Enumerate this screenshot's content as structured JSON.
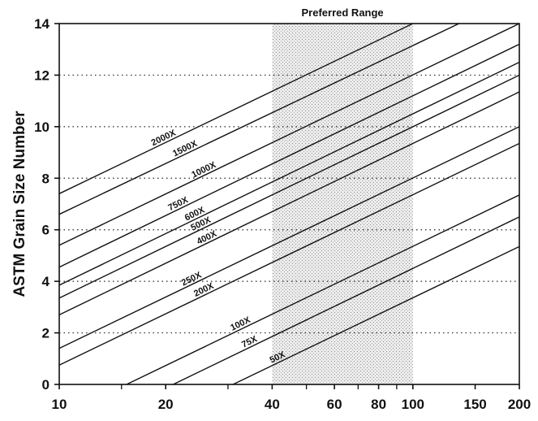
{
  "chart_data": {
    "type": "line",
    "title": "",
    "xlabel": "",
    "ylabel": "ASTM Grain Size Number",
    "x_scale": "log",
    "xlim": [
      10,
      200
    ],
    "ylim": [
      0,
      14
    ],
    "x_ticks": [
      10,
      20,
      40,
      60,
      80,
      100,
      150,
      200
    ],
    "x_tick_labels": [
      "10",
      "20",
      "40",
      "60",
      "80",
      "100",
      "150",
      "200"
    ],
    "x_minor_ticks": [
      15,
      30,
      50,
      70,
      90
    ],
    "y_ticks": [
      0,
      2,
      4,
      6,
      8,
      10,
      12,
      14
    ],
    "y_tick_labels": [
      "0",
      "2",
      "4",
      "6",
      "8",
      "10",
      "12",
      "14"
    ],
    "grid": {
      "y_major": "dotted",
      "x": false
    },
    "shaded_region": {
      "label": "Preferred Range",
      "x_from": 40,
      "x_to": 100
    },
    "series": [
      {
        "name": "2000X",
        "x": [
          10,
          100
        ],
        "y": [
          7.4,
          14.0
        ],
        "label_at": 20
      },
      {
        "name": "1500X",
        "x": [
          10,
          135
        ],
        "y": [
          6.6,
          14.0
        ],
        "label_at": 23
      },
      {
        "name": "1000X",
        "x": [
          10,
          200
        ],
        "y": [
          5.4,
          14.0
        ],
        "label_at": 26
      },
      {
        "name": "750X",
        "x": [
          10,
          200
        ],
        "y": [
          4.55,
          13.2
        ],
        "label_at": 22
      },
      {
        "name": "600X",
        "x": [
          10,
          200
        ],
        "y": [
          3.85,
          12.5
        ],
        "label_at": 24.5
      },
      {
        "name": "500X",
        "x": [
          10,
          200
        ],
        "y": [
          3.35,
          12.0
        ],
        "label_at": 25.5
      },
      {
        "name": "400X",
        "x": [
          10,
          200
        ],
        "y": [
          2.7,
          11.35
        ],
        "label_at": 26.5
      },
      {
        "name": "250X",
        "x": [
          10,
          200
        ],
        "y": [
          1.4,
          10.0
        ],
        "label_at": 24
      },
      {
        "name": "200X",
        "x": [
          10,
          200
        ],
        "y": [
          0.75,
          9.35
        ],
        "label_at": 26
      },
      {
        "name": "100X",
        "x": [
          15.5,
          200
        ],
        "y": [
          0,
          7.35
        ],
        "label_at": 33
      },
      {
        "name": "75X",
        "x": [
          21,
          200
        ],
        "y": [
          0,
          6.5
        ],
        "label_at": 35
      },
      {
        "name": "50X",
        "x": [
          31,
          200
        ],
        "y": [
          0,
          5.35
        ],
        "label_at": 42
      }
    ]
  }
}
